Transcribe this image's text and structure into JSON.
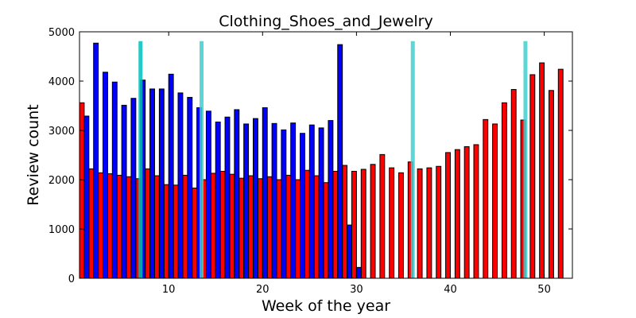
{
  "chart_data": {
    "type": "bar",
    "title": "Clothing_Shoes_and_Jewelry",
    "xlabel": "Week of the year",
    "ylabel": "Review count",
    "xlim": [
      0.5,
      53
    ],
    "ylim": [
      0,
      5000
    ],
    "xticks": [
      10,
      20,
      30,
      40,
      50
    ],
    "yticks": [
      0,
      1000,
      2000,
      3000,
      4000,
      5000
    ],
    "grid": false,
    "series": [
      {
        "color": "#ff0000",
        "x": [
          1,
          2,
          3,
          4,
          5,
          6,
          7,
          8,
          9,
          10,
          11,
          12,
          13,
          14,
          15,
          16,
          17,
          18,
          19,
          20,
          21,
          22,
          23,
          24,
          25,
          26,
          27,
          28,
          29,
          30,
          31,
          32,
          33,
          34,
          35,
          36,
          37,
          38,
          39,
          40,
          41,
          42,
          43,
          44,
          45,
          46,
          47,
          48,
          49,
          50,
          51,
          52
        ],
        "values": [
          3560,
          2220,
          2140,
          2120,
          2090,
          2060,
          2020,
          2220,
          2080,
          1900,
          1890,
          2090,
          1830,
          2000,
          2130,
          2170,
          2110,
          2030,
          2080,
          2020,
          2060,
          2000,
          2090,
          2000,
          2190,
          2080,
          1940,
          2170,
          2290,
          2170,
          2210,
          2310,
          2510,
          2240,
          2140,
          2360,
          2220,
          2240,
          2270,
          2550,
          2610,
          2670,
          2710,
          3220,
          3130,
          3560,
          3830,
          3210,
          4130,
          4370,
          3810,
          4240
        ]
      },
      {
        "color": "#0000ff",
        "x": [
          1,
          2,
          3,
          4,
          5,
          6,
          7,
          8,
          9,
          10,
          11,
          12,
          13,
          14,
          15,
          16,
          17,
          18,
          19,
          20,
          21,
          22,
          23,
          24,
          25,
          26,
          27,
          28,
          29,
          30
        ],
        "values": [
          3290,
          4770,
          4180,
          3980,
          3510,
          3650,
          4020,
          3840,
          3840,
          4140,
          3760,
          3670,
          3460,
          3390,
          3170,
          3270,
          3420,
          3130,
          3240,
          3460,
          3140,
          3010,
          3150,
          2940,
          3110,
          3050,
          3200,
          4740,
          1080,
          220
        ]
      }
    ],
    "markers": [
      {
        "x": 7,
        "color": "#00c0c0"
      },
      {
        "x": 13.5,
        "color": "#40d0d0"
      },
      {
        "x": 36,
        "color": "#40d0d0"
      },
      {
        "x": 48,
        "color": "#40d0d0"
      }
    ],
    "marker_top": 4810
  }
}
